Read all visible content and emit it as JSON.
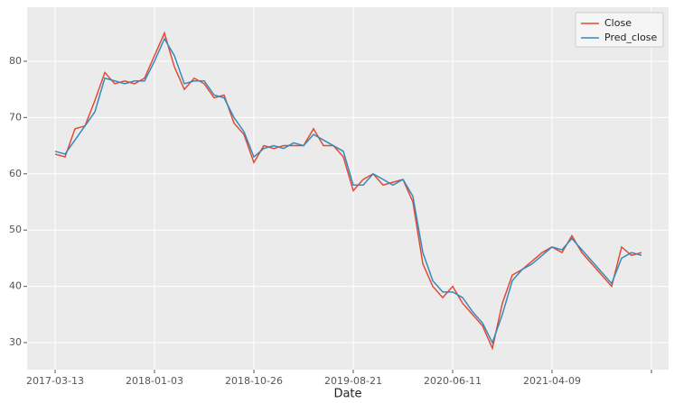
{
  "chart_data": {
    "type": "line",
    "x_label": "Date",
    "categories": [
      "2017-03-13",
      null,
      null,
      null,
      null,
      null,
      null,
      null,
      null,
      null,
      "2018-01-03",
      null,
      null,
      null,
      null,
      null,
      null,
      null,
      null,
      null,
      "2018-10-26",
      null,
      null,
      null,
      null,
      null,
      null,
      null,
      null,
      null,
      "2019-08-21",
      null,
      null,
      null,
      null,
      null,
      null,
      null,
      null,
      null,
      "2020-06-11",
      null,
      null,
      null,
      null,
      null,
      null,
      null,
      null,
      null,
      "2021-04-09",
      null,
      null,
      null,
      null,
      null,
      null,
      null,
      null,
      null,
      null
    ],
    "series": [
      {
        "name": "Close",
        "color": "#e24a33",
        "values": [
          63.5,
          63,
          68,
          68.5,
          73,
          78,
          76,
          76.5,
          76,
          77,
          81,
          85,
          79,
          75,
          77,
          76,
          73.5,
          74,
          69,
          67,
          62,
          65,
          64.5,
          65,
          65,
          65,
          68,
          65,
          65,
          63,
          57,
          59,
          60,
          58,
          58.5,
          59,
          55,
          44,
          40,
          38,
          40,
          37,
          35,
          33,
          29,
          37,
          42,
          43,
          44.5,
          46,
          47,
          46,
          49,
          46,
          44,
          42,
          40,
          47,
          45.5,
          46,
          null
        ]
      },
      {
        "name": "Pred_close",
        "color": "#348abd",
        "values": [
          64,
          63.5,
          66,
          68.5,
          71,
          77,
          76.5,
          76,
          76.5,
          76.5,
          80,
          84,
          81,
          76,
          76.5,
          76.5,
          74,
          73.5,
          70,
          67.5,
          63,
          64.5,
          65,
          64.5,
          65.5,
          65,
          67,
          66,
          65,
          64,
          58,
          58,
          60,
          59,
          58,
          59,
          56,
          46,
          41,
          39,
          39,
          38,
          35.5,
          33.5,
          30,
          35,
          41,
          43,
          44,
          45.5,
          47,
          46.5,
          48.5,
          46.5,
          44.5,
          42.5,
          40.5,
          45,
          46,
          45.5,
          null
        ]
      }
    ],
    "ylim": [
      25.2,
      89.6
    ],
    "yticks": [
      30,
      40,
      50,
      60,
      70,
      80
    ],
    "grid": true,
    "legend": "upper right"
  }
}
